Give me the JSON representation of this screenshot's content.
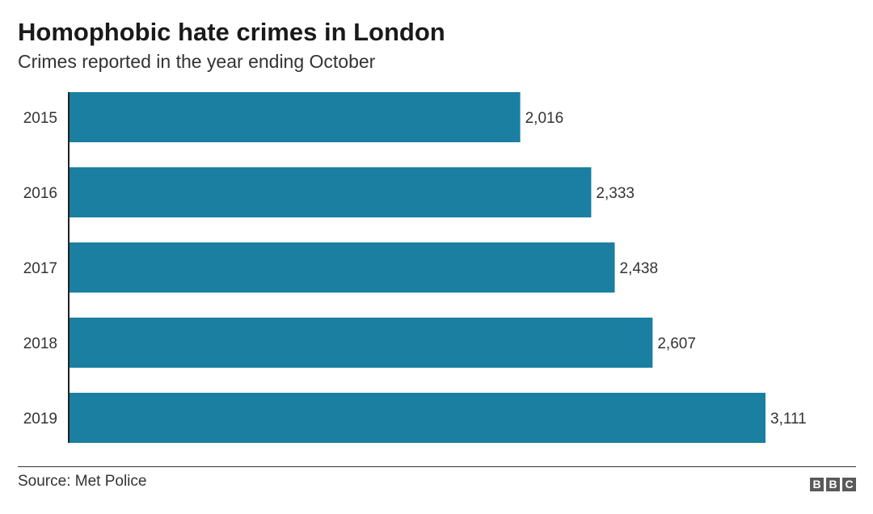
{
  "header": {
    "title": "Homophobic hate crimes in London",
    "subtitle": "Crimes reported in the year ending October"
  },
  "footer": {
    "source": "Source: Met Police",
    "logo_letters": [
      "B",
      "B",
      "C"
    ]
  },
  "colors": {
    "bar": "#1a7fa1",
    "axis": "#222222",
    "text": "#333333",
    "logo": "#5a5a5a"
  },
  "chart_data": {
    "type": "bar",
    "orientation": "horizontal",
    "title": "Homophobic hate crimes in London",
    "subtitle": "Crimes reported in the year ending October",
    "categories": [
      "2015",
      "2016",
      "2017",
      "2018",
      "2019"
    ],
    "values": [
      2016,
      2333,
      2438,
      2607,
      3111
    ],
    "value_labels": [
      "2,016",
      "2,333",
      "2,438",
      "2,607",
      "3,111"
    ],
    "xlabel": "",
    "ylabel": "",
    "xlim": [
      0,
      3111
    ],
    "grid": false,
    "legend": "none"
  }
}
